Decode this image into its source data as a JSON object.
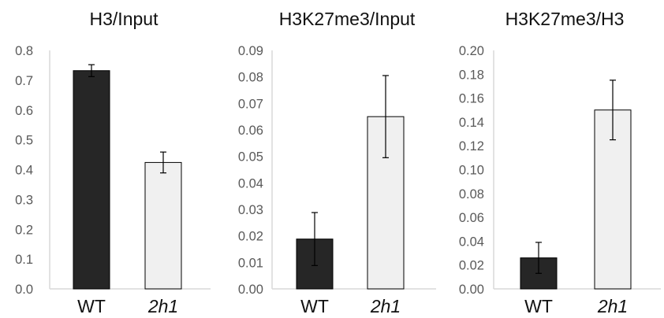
{
  "chart_data": [
    {
      "type": "bar",
      "title": "H3/Input",
      "categories": [
        "WT",
        "2h1"
      ],
      "values": [
        0.732,
        0.424
      ],
      "errors": [
        0.02,
        0.035
      ],
      "ylim": [
        0,
        0.8
      ],
      "yticks": [
        "0.0",
        "0.1",
        "0.2",
        "0.3",
        "0.4",
        "0.5",
        "0.6",
        "0.7",
        "0.8"
      ],
      "xlabel": "",
      "ylabel": "",
      "grid": false
    },
    {
      "type": "bar",
      "title": "H3K27me3/Input",
      "categories": [
        "WT",
        "2h1"
      ],
      "values": [
        0.0188,
        0.065
      ],
      "errors": [
        0.01,
        0.0155
      ],
      "ylim": [
        0,
        0.09
      ],
      "yticks": [
        "0.00",
        "0.01",
        "0.02",
        "0.03",
        "0.04",
        "0.05",
        "0.06",
        "0.07",
        "0.08",
        "0.09"
      ],
      "xlabel": "",
      "ylabel": "",
      "grid": false
    },
    {
      "type": "bar",
      "title": "H3K27me3/H3",
      "categories": [
        "WT",
        "2h1"
      ],
      "values": [
        0.026,
        0.15
      ],
      "errors": [
        0.013,
        0.025
      ],
      "ylim": [
        0,
        0.2
      ],
      "yticks": [
        "0.00",
        "0.02",
        "0.04",
        "0.06",
        "0.08",
        "0.10",
        "0.12",
        "0.14",
        "0.16",
        "0.18",
        "0.20"
      ],
      "xlabel": "",
      "ylabel": "",
      "grid": false
    }
  ],
  "colors": {
    "bar_wt": "#262626",
    "bar_mutant": "#f0f0f0",
    "bar_edge": "#000000",
    "axis": "#d9d9d9",
    "error_bar": "#000000"
  }
}
